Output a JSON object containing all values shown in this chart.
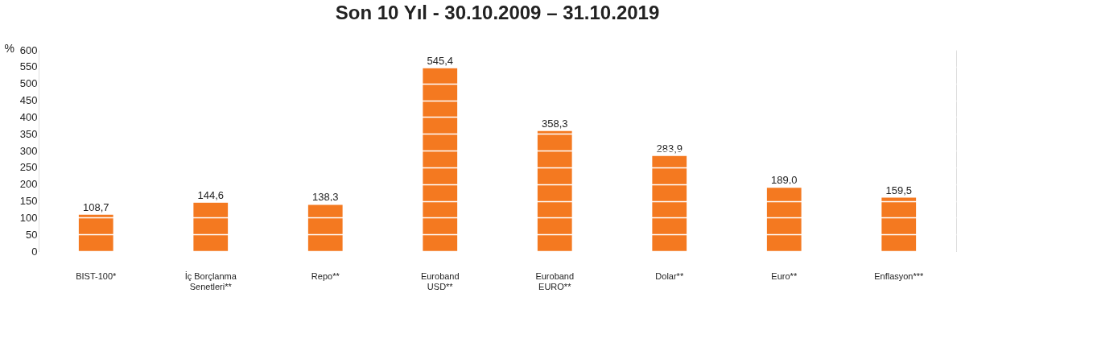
{
  "chart_data": {
    "type": "bar",
    "title": "Son 10 Yıl - 30.10.2009 – 31.10.2019",
    "ylabel": "%",
    "categories": [
      "BIST-100*",
      "İç Borçlanma\nSenetleri**",
      "Repo**",
      "Euroband\nUSD**",
      "Euroband\nEURO**",
      "Dolar**",
      "Euro**",
      "Enflasyon***"
    ],
    "values": [
      108.7,
      144.6,
      138.3,
      545.4,
      358.3,
      283.9,
      189.0,
      159.5
    ],
    "value_labels": [
      "108,7",
      "144,6",
      "138,3",
      "545,4",
      "358,3",
      "283,9",
      "189,0",
      "159,5"
    ],
    "color": "#f47920",
    "ylim": [
      0,
      600
    ],
    "yticks": [
      0,
      50,
      100,
      150,
      200,
      250,
      300,
      350,
      400,
      450,
      500,
      550,
      600
    ],
    "grid": "y"
  }
}
